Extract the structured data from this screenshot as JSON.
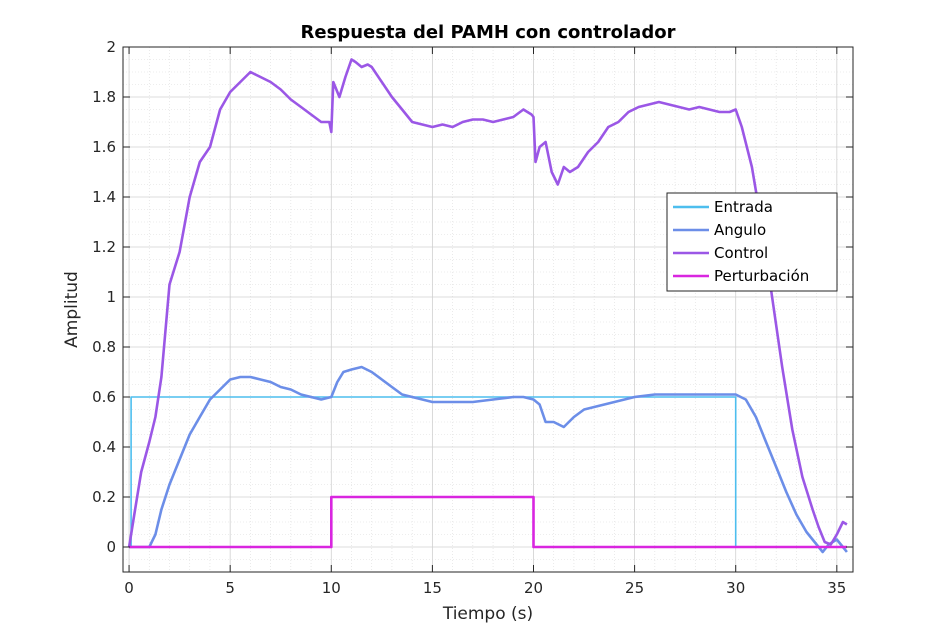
{
  "chart_data": {
    "type": "line",
    "title": "Respuesta del PAMH con controlador",
    "xlabel": "Tiempo (s)",
    "ylabel": "Amplitud",
    "xlim": [
      -0.3,
      35.8
    ],
    "ylim": [
      -0.1,
      2
    ],
    "xticks": [
      "0",
      "5",
      "10",
      "15",
      "20",
      "25",
      "30",
      "35"
    ],
    "yticks": [
      "0",
      "0.2",
      "0.4",
      "0.6",
      "0.8",
      "1",
      "1.2",
      "1.4",
      "1.6",
      "1.8",
      "2"
    ],
    "grid": true,
    "minor_grid": true,
    "legend_position": "right",
    "series": [
      {
        "name": "Entrada",
        "color": "#4dbeee",
        "x": [
          0,
          0.1,
          0.1,
          30,
          30,
          35.5
        ],
        "y": [
          0,
          0,
          0.6,
          0.6,
          0,
          0
        ]
      },
      {
        "name": "Angulo",
        "color": "#6c8ee8",
        "x": [
          0,
          1.0,
          1.3,
          1.6,
          2.0,
          2.5,
          3.0,
          3.5,
          4.0,
          4.5,
          5.0,
          5.5,
          6.0,
          6.5,
          7.0,
          7.5,
          8.0,
          8.5,
          9.0,
          9.5,
          10.0,
          10.3,
          10.6,
          11.0,
          11.5,
          12.0,
          12.5,
          13.0,
          13.5,
          14.0,
          14.5,
          15.0,
          16.0,
          17.0,
          18.0,
          19.0,
          19.5,
          20.0,
          20.3,
          20.6,
          21.0,
          21.5,
          22.0,
          22.5,
          23.0,
          24.0,
          25.0,
          26.0,
          27.0,
          28.0,
          29.0,
          30.0,
          30.5,
          31.0,
          31.5,
          32.0,
          32.5,
          33.0,
          33.5,
          34.0,
          34.3,
          34.6,
          35.0,
          35.3,
          35.5
        ],
        "y": [
          0,
          0,
          0.05,
          0.15,
          0.25,
          0.35,
          0.45,
          0.52,
          0.59,
          0.63,
          0.67,
          0.68,
          0.68,
          0.67,
          0.66,
          0.64,
          0.63,
          0.61,
          0.6,
          0.59,
          0.6,
          0.66,
          0.7,
          0.71,
          0.72,
          0.7,
          0.67,
          0.64,
          0.61,
          0.6,
          0.59,
          0.58,
          0.58,
          0.58,
          0.59,
          0.6,
          0.6,
          0.59,
          0.57,
          0.5,
          0.5,
          0.48,
          0.52,
          0.55,
          0.56,
          0.58,
          0.6,
          0.61,
          0.61,
          0.61,
          0.61,
          0.61,
          0.59,
          0.52,
          0.42,
          0.32,
          0.22,
          0.13,
          0.06,
          0.01,
          -0.02,
          0.01,
          0.03,
          0.0,
          -0.02
        ]
      },
      {
        "name": "Control",
        "color": "#9b57e6",
        "x": [
          0,
          0.3,
          0.6,
          1.0,
          1.3,
          1.6,
          2.0,
          2.5,
          3.0,
          3.5,
          4.0,
          4.5,
          5.0,
          5.5,
          6.0,
          6.5,
          7.0,
          7.5,
          8.0,
          8.5,
          9.0,
          9.5,
          9.9,
          10.0,
          10.1,
          10.4,
          10.7,
          11.0,
          11.2,
          11.5,
          11.8,
          12.0,
          12.5,
          13.0,
          13.5,
          14.0,
          14.5,
          15.0,
          15.5,
          16.0,
          16.5,
          17.0,
          17.5,
          18.0,
          18.5,
          19.0,
          19.5,
          19.9,
          20.0,
          20.1,
          20.3,
          20.6,
          20.9,
          21.2,
          21.5,
          21.8,
          22.2,
          22.7,
          23.2,
          23.7,
          24.2,
          24.7,
          25.2,
          25.7,
          26.2,
          26.7,
          27.2,
          27.7,
          28.2,
          28.7,
          29.2,
          29.7,
          30.0,
          30.3,
          30.8,
          31.3,
          31.8,
          32.3,
          32.8,
          33.3,
          33.8,
          34.1,
          34.4,
          34.7,
          35.0,
          35.3,
          35.5
        ],
        "y": [
          0,
          0.15,
          0.3,
          0.42,
          0.52,
          0.68,
          1.05,
          1.18,
          1.4,
          1.54,
          1.6,
          1.75,
          1.82,
          1.86,
          1.9,
          1.88,
          1.86,
          1.83,
          1.79,
          1.76,
          1.73,
          1.7,
          1.7,
          1.66,
          1.86,
          1.8,
          1.88,
          1.95,
          1.94,
          1.92,
          1.93,
          1.92,
          1.86,
          1.8,
          1.75,
          1.7,
          1.69,
          1.68,
          1.69,
          1.68,
          1.7,
          1.71,
          1.71,
          1.7,
          1.71,
          1.72,
          1.75,
          1.73,
          1.72,
          1.54,
          1.6,
          1.62,
          1.5,
          1.45,
          1.52,
          1.5,
          1.52,
          1.58,
          1.62,
          1.68,
          1.7,
          1.74,
          1.76,
          1.77,
          1.78,
          1.77,
          1.76,
          1.75,
          1.76,
          1.75,
          1.74,
          1.74,
          1.75,
          1.68,
          1.52,
          1.28,
          1.0,
          0.72,
          0.47,
          0.28,
          0.15,
          0.08,
          0.02,
          0.01,
          0.05,
          0.1,
          0.09
        ]
      },
      {
        "name": "Perturbación",
        "color": "#d926e0",
        "x": [
          0,
          10,
          10,
          20,
          20,
          35.5
        ],
        "y": [
          0,
          0,
          0.2,
          0.2,
          0,
          0
        ]
      }
    ]
  }
}
